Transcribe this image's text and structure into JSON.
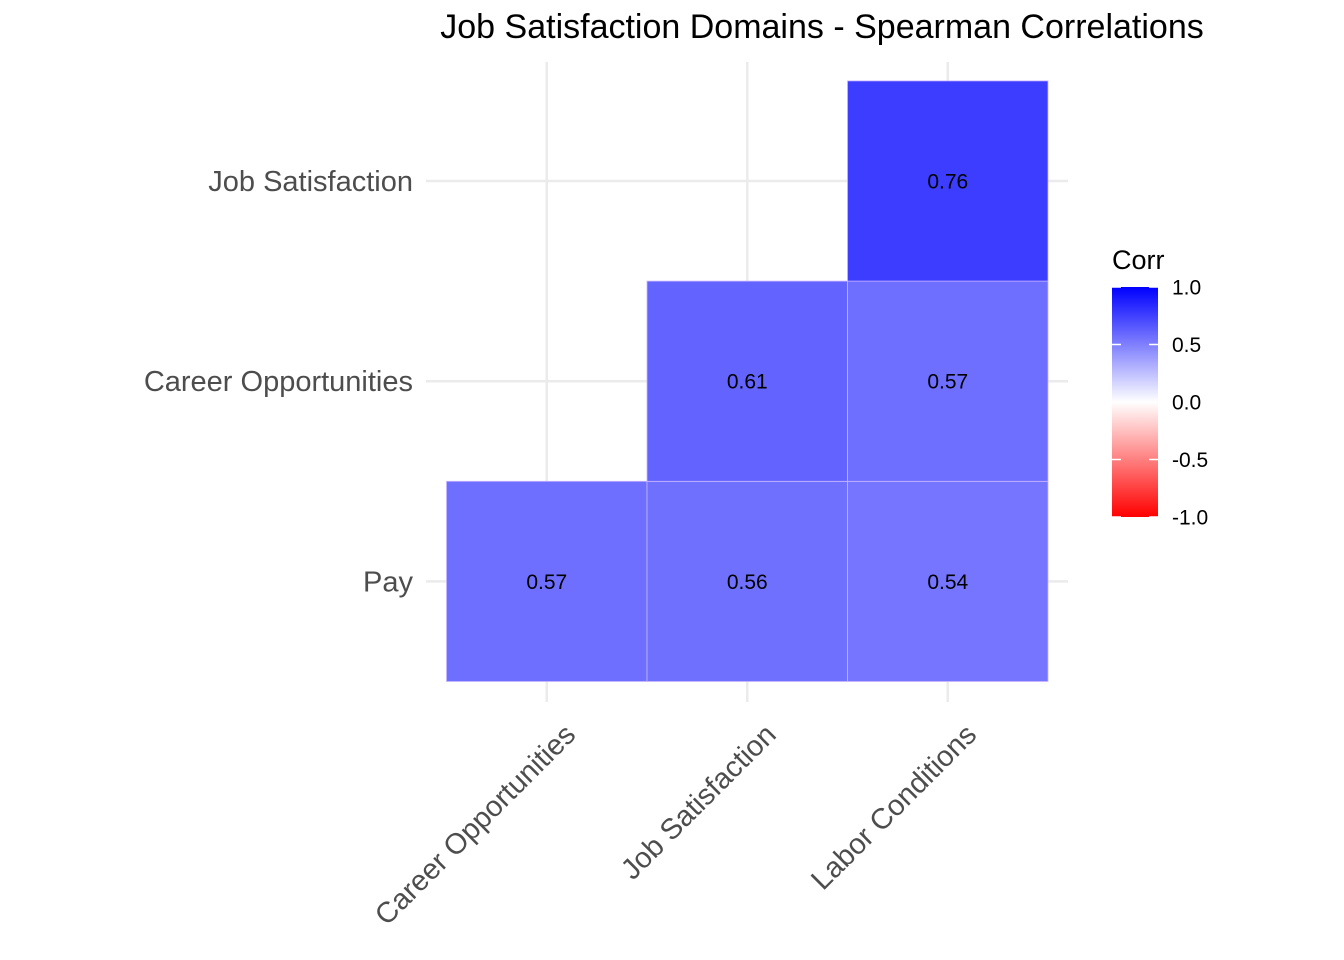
{
  "chart_data": {
    "type": "heatmap",
    "title": "Job Satisfaction Domains - Spearman Correlations",
    "x_categories": [
      "Career Opportunities",
      "Job Satisfaction",
      "Labor Conditions"
    ],
    "y_categories": [
      "Pay",
      "Career Opportunities",
      "Job Satisfaction"
    ],
    "cells": [
      {
        "x": "Career Opportunities",
        "y": "Pay",
        "value": 0.57,
        "label": "0.57"
      },
      {
        "x": "Job Satisfaction",
        "y": "Pay",
        "value": 0.56,
        "label": "0.56"
      },
      {
        "x": "Labor Conditions",
        "y": "Pay",
        "value": 0.54,
        "label": "0.54"
      },
      {
        "x": "Job Satisfaction",
        "y": "Career Opportunities",
        "value": 0.61,
        "label": "0.61"
      },
      {
        "x": "Labor Conditions",
        "y": "Career Opportunities",
        "value": 0.57,
        "label": "0.57"
      },
      {
        "x": "Labor Conditions",
        "y": "Job Satisfaction",
        "value": 0.76,
        "label": "0.76"
      }
    ],
    "legend": {
      "title": "Corr",
      "placement": "right",
      "range": [
        -1,
        1
      ],
      "ticks": [
        "1.0",
        "0.5",
        "0.0",
        "-0.5",
        "-1.0"
      ],
      "colors": {
        "low": "#FF0000",
        "mid": "#FFFFFF",
        "high": "#0000FF"
      }
    },
    "grid": true
  }
}
